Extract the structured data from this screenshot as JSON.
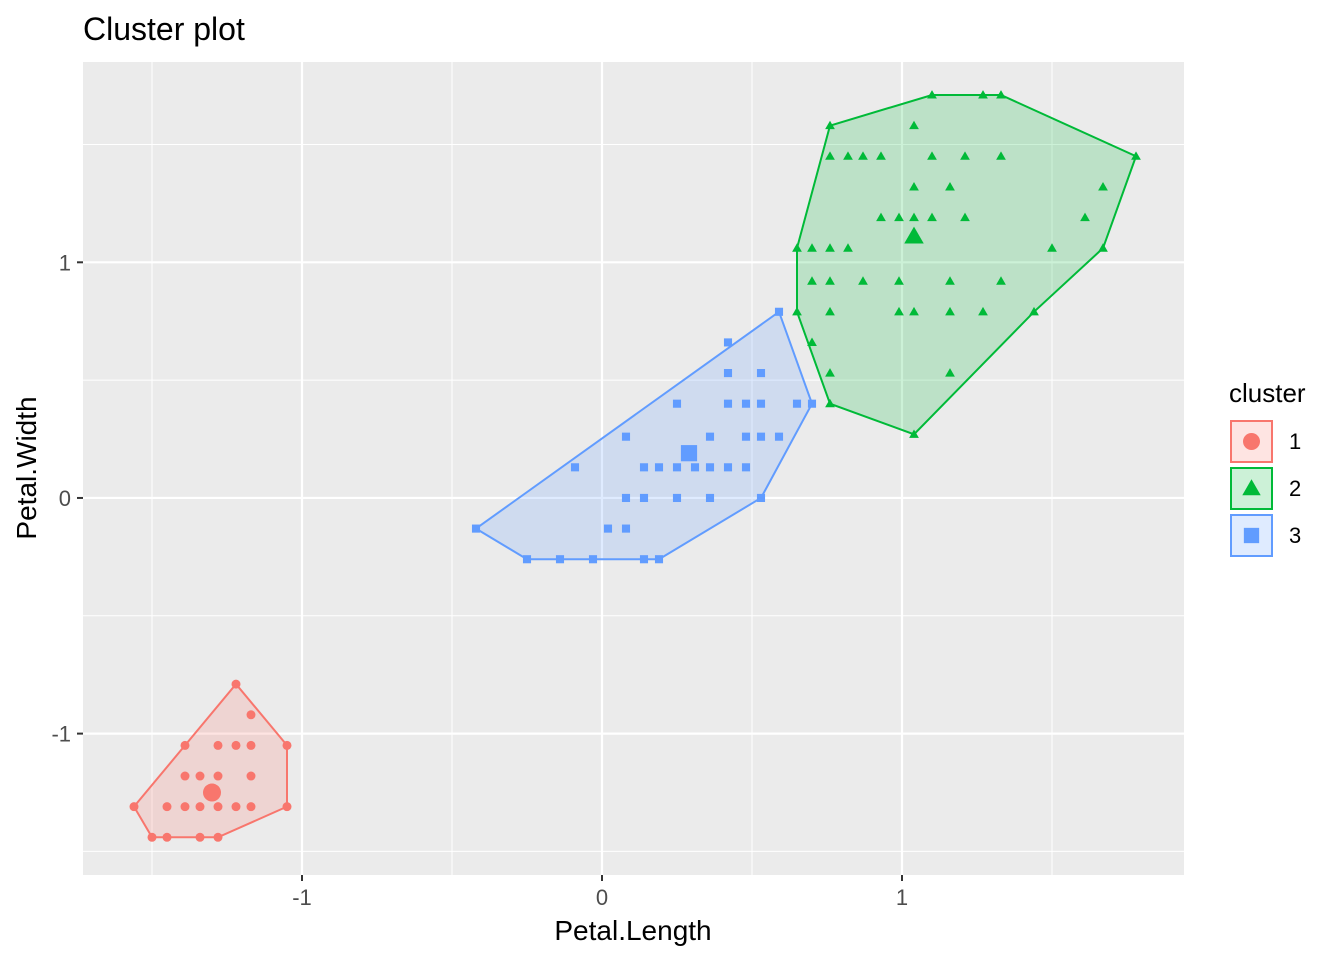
{
  "chart_data": {
    "type": "scatter",
    "title": "Cluster plot",
    "xlabel": "Petal.Length",
    "ylabel": "Petal.Width",
    "xlim": [
      -1.73,
      1.94
    ],
    "ylim": [
      -1.6,
      1.85
    ],
    "x_ticks": [
      -1,
      0,
      1
    ],
    "y_ticks": [
      -1,
      0,
      1
    ],
    "x_tick_labels": [
      "-1",
      "0",
      "1"
    ],
    "y_tick_labels": [
      "-1",
      "0",
      "1"
    ],
    "grid": true,
    "legend": {
      "title": "cluster",
      "position": "right"
    },
    "series": [
      {
        "name": "1",
        "color": "#F8766D",
        "shape": "circle",
        "points": [
          [
            -1.56,
            -1.31
          ],
          [
            -1.5,
            -1.44
          ],
          [
            -1.34,
            -1.44
          ],
          [
            -1.28,
            -1.44
          ],
          [
            -1.22,
            -0.79
          ],
          [
            -1.17,
            -0.92
          ],
          [
            -1.05,
            -1.05
          ],
          [
            -1.05,
            -1.31
          ],
          [
            -1.39,
            -1.05
          ],
          [
            -1.28,
            -1.05
          ],
          [
            -1.22,
            -1.05
          ],
          [
            -1.17,
            -1.05
          ],
          [
            -1.39,
            -1.18
          ],
          [
            -1.34,
            -1.18
          ],
          [
            -1.28,
            -1.18
          ],
          [
            -1.17,
            -1.18
          ],
          [
            -1.45,
            -1.31
          ],
          [
            -1.39,
            -1.31
          ],
          [
            -1.34,
            -1.31
          ],
          [
            -1.28,
            -1.31
          ],
          [
            -1.22,
            -1.31
          ],
          [
            -1.17,
            -1.31
          ],
          [
            -1.45,
            -1.44
          ]
        ],
        "hull": [
          [
            -1.56,
            -1.31
          ],
          [
            -1.5,
            -1.44
          ],
          [
            -1.28,
            -1.44
          ],
          [
            -1.05,
            -1.31
          ],
          [
            -1.05,
            -1.05
          ],
          [
            -1.22,
            -0.79
          ],
          [
            -1.39,
            -1.05
          ]
        ],
        "center": [
          -1.3,
          -1.25
        ]
      },
      {
        "name": "2",
        "color": "#00BA38",
        "shape": "triangle",
        "points": [
          [
            0.76,
            1.58
          ],
          [
            1.1,
            1.71
          ],
          [
            1.27,
            1.71
          ],
          [
            1.33,
            1.71
          ],
          [
            1.78,
            1.45
          ],
          [
            1.67,
            1.06
          ],
          [
            1.44,
            0.79
          ],
          [
            1.04,
            0.27
          ],
          [
            0.76,
            0.4
          ],
          [
            0.65,
            0.79
          ],
          [
            0.65,
            1.06
          ],
          [
            1.04,
            1.58
          ],
          [
            0.76,
            1.45
          ],
          [
            0.82,
            1.45
          ],
          [
            0.87,
            1.45
          ],
          [
            0.93,
            1.45
          ],
          [
            1.1,
            1.45
          ],
          [
            1.21,
            1.45
          ],
          [
            1.33,
            1.45
          ],
          [
            1.04,
            1.32
          ],
          [
            1.16,
            1.32
          ],
          [
            1.67,
            1.32
          ],
          [
            0.93,
            1.19
          ],
          [
            0.99,
            1.19
          ],
          [
            1.04,
            1.19
          ],
          [
            1.1,
            1.19
          ],
          [
            1.21,
            1.19
          ],
          [
            1.61,
            1.19
          ],
          [
            0.7,
            1.06
          ],
          [
            0.76,
            1.06
          ],
          [
            0.82,
            1.06
          ],
          [
            1.5,
            1.06
          ],
          [
            0.7,
            0.92
          ],
          [
            0.76,
            0.92
          ],
          [
            0.87,
            0.92
          ],
          [
            0.99,
            0.92
          ],
          [
            1.16,
            0.92
          ],
          [
            1.33,
            0.92
          ],
          [
            0.76,
            0.79
          ],
          [
            0.99,
            0.79
          ],
          [
            1.04,
            0.79
          ],
          [
            1.16,
            0.79
          ],
          [
            1.27,
            0.79
          ],
          [
            0.7,
            0.66
          ],
          [
            0.76,
            0.53
          ],
          [
            1.16,
            0.53
          ]
        ],
        "hull": [
          [
            0.65,
            0.79
          ],
          [
            0.65,
            1.06
          ],
          [
            0.76,
            1.58
          ],
          [
            1.1,
            1.71
          ],
          [
            1.33,
            1.71
          ],
          [
            1.78,
            1.45
          ],
          [
            1.67,
            1.06
          ],
          [
            1.44,
            0.79
          ],
          [
            1.04,
            0.27
          ],
          [
            0.76,
            0.4
          ]
        ],
        "center": [
          1.04,
          1.11
        ]
      },
      {
        "name": "3",
        "color": "#619CFF",
        "shape": "square",
        "points": [
          [
            -0.42,
            -0.13
          ],
          [
            -0.25,
            -0.26
          ],
          [
            -0.14,
            -0.26
          ],
          [
            -0.03,
            -0.26
          ],
          [
            0.14,
            -0.26
          ],
          [
            0.19,
            -0.26
          ],
          [
            0.53,
            0.0
          ],
          [
            0.7,
            0.4
          ],
          [
            0.59,
            0.79
          ],
          [
            0.42,
            0.66
          ],
          [
            -0.09,
            0.13
          ],
          [
            0.08,
            0.26
          ],
          [
            0.25,
            0.4
          ],
          [
            0.42,
            0.4
          ],
          [
            0.48,
            0.4
          ],
          [
            0.53,
            0.4
          ],
          [
            0.65,
            0.4
          ],
          [
            0.42,
            0.53
          ],
          [
            0.53,
            0.53
          ],
          [
            0.14,
            0.13
          ],
          [
            0.19,
            0.13
          ],
          [
            0.25,
            0.13
          ],
          [
            0.31,
            0.13
          ],
          [
            0.36,
            0.13
          ],
          [
            0.42,
            0.13
          ],
          [
            0.48,
            0.13
          ],
          [
            0.08,
            0.0
          ],
          [
            0.14,
            0.0
          ],
          [
            0.25,
            0.0
          ],
          [
            0.36,
            0.0
          ],
          [
            0.02,
            -0.13
          ],
          [
            0.08,
            -0.13
          ],
          [
            0.36,
            0.26
          ],
          [
            0.48,
            0.26
          ],
          [
            0.53,
            0.26
          ],
          [
            0.59,
            0.26
          ]
        ],
        "hull": [
          [
            -0.42,
            -0.13
          ],
          [
            -0.25,
            -0.26
          ],
          [
            0.19,
            -0.26
          ],
          [
            0.53,
            0.0
          ],
          [
            0.7,
            0.4
          ],
          [
            0.59,
            0.79
          ]
        ],
        "center": [
          0.29,
          0.19
        ]
      }
    ]
  }
}
